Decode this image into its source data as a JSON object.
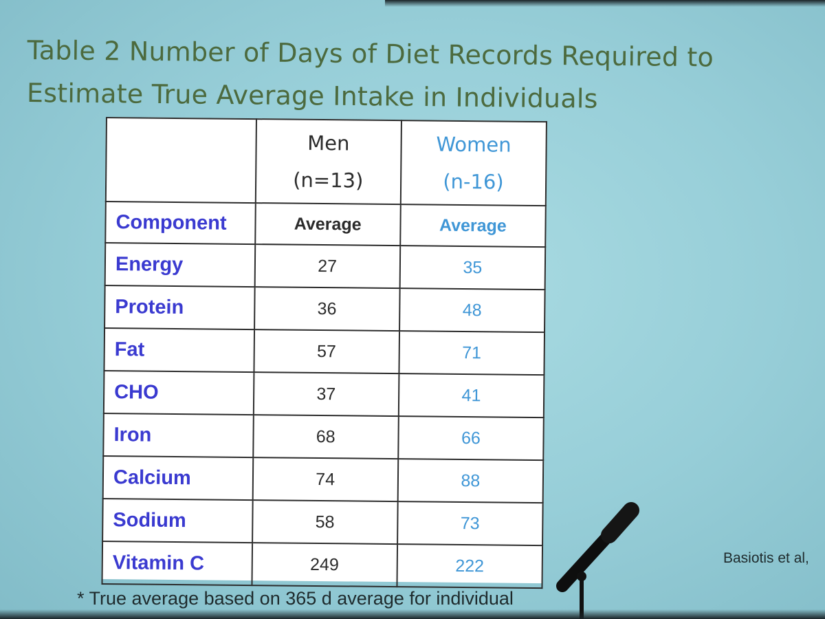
{
  "slide": {
    "title": "Table 2 Number of Days of Diet Records Required to Estimate True Average Intake in Individuals",
    "footnote": "* True average based on 365 d average for individual",
    "citation": "Basiotis et al,"
  },
  "table": {
    "group_headers": {
      "men": {
        "label": "Men",
        "n": "(n=13)"
      },
      "women": {
        "label": "Women",
        "n": "(n-16)"
      }
    },
    "column_headers": {
      "component": "Component",
      "men_average": "Average",
      "women_average": "Average"
    },
    "rows": [
      {
        "component": "Energy",
        "men": "27",
        "women": "35"
      },
      {
        "component": "Protein",
        "men": "36",
        "women": "48"
      },
      {
        "component": "Fat",
        "men": "57",
        "women": "71"
      },
      {
        "component": "CHO",
        "men": "37",
        "women": "41"
      },
      {
        "component": "Iron",
        "men": "68",
        "women": "66"
      },
      {
        "component": "Calcium",
        "men": "74",
        "women": "88"
      },
      {
        "component": "Sodium",
        "men": "58",
        "women": "73"
      },
      {
        "component": "Vitamin C",
        "men": "249",
        "women": "222"
      }
    ]
  },
  "colors": {
    "title": "#4c6a3e",
    "component_text": "#3a3ad0",
    "men_text": "#2b2b2b",
    "women_text": "#3f96d6",
    "slide_background": "#a9dbe2"
  }
}
